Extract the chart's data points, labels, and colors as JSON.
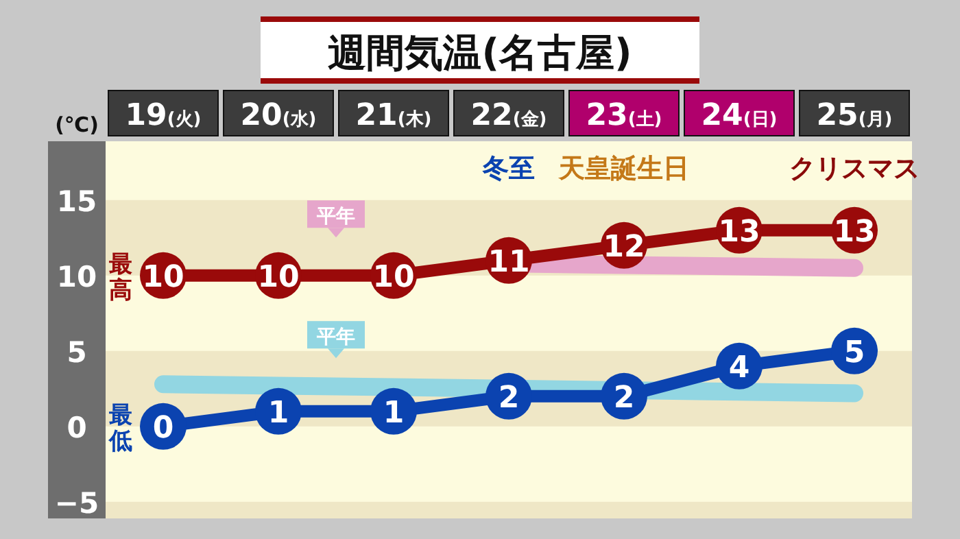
{
  "chart_data": {
    "type": "line",
    "title": "週間気温(名古屋)",
    "ylabel": "(℃)",
    "categories": [
      "19(火)",
      "20(水)",
      "21(木)",
      "22(金)",
      "23(土)",
      "24(日)",
      "25(月)"
    ],
    "series": [
      {
        "name": "平年",
        "color": "#e6a6cb",
        "marker": "none",
        "values": [
          null,
          null,
          null,
          10.8,
          10.7,
          10.6,
          10.5
        ]
      },
      {
        "name": "平年",
        "color": "#92d6e2",
        "marker": "none",
        "values": [
          2.8,
          2.7,
          2.6,
          2.5,
          2.4,
          2.3,
          2.2
        ]
      },
      {
        "name": "最高",
        "color": "#9a0a0a",
        "values": [
          10,
          10,
          10,
          11,
          12,
          13,
          13
        ],
        "value_labels": [
          "10",
          "10",
          "10",
          "11",
          "12",
          "13",
          "13"
        ]
      },
      {
        "name": "最低",
        "color": "#0b43b0",
        "values": [
          0,
          1,
          1,
          2,
          2,
          4,
          5
        ],
        "value_labels": [
          "0",
          "1",
          "1",
          "2",
          "2",
          "4",
          "5"
        ]
      }
    ],
    "annotations": [
      "冬至",
      "天皇誕生日",
      "クリスマス"
    ],
    "ylim": [
      -6.1,
      18.9
    ],
    "yticks": [
      {
        "value": -5,
        "label": "−5"
      },
      0,
      5,
      10,
      15
    ],
    "bands": [
      {
        "axis": "y",
        "from": 10,
        "to": 15,
        "color": "#efe7c6"
      },
      {
        "axis": "y",
        "from": 0,
        "to": 5,
        "color": "#efe7c6"
      },
      {
        "axis": "y",
        "from": -6.1,
        "to": -5,
        "color": "#efe7c6"
      }
    ],
    "marker": "circle",
    "line_style": "solid"
  }
}
